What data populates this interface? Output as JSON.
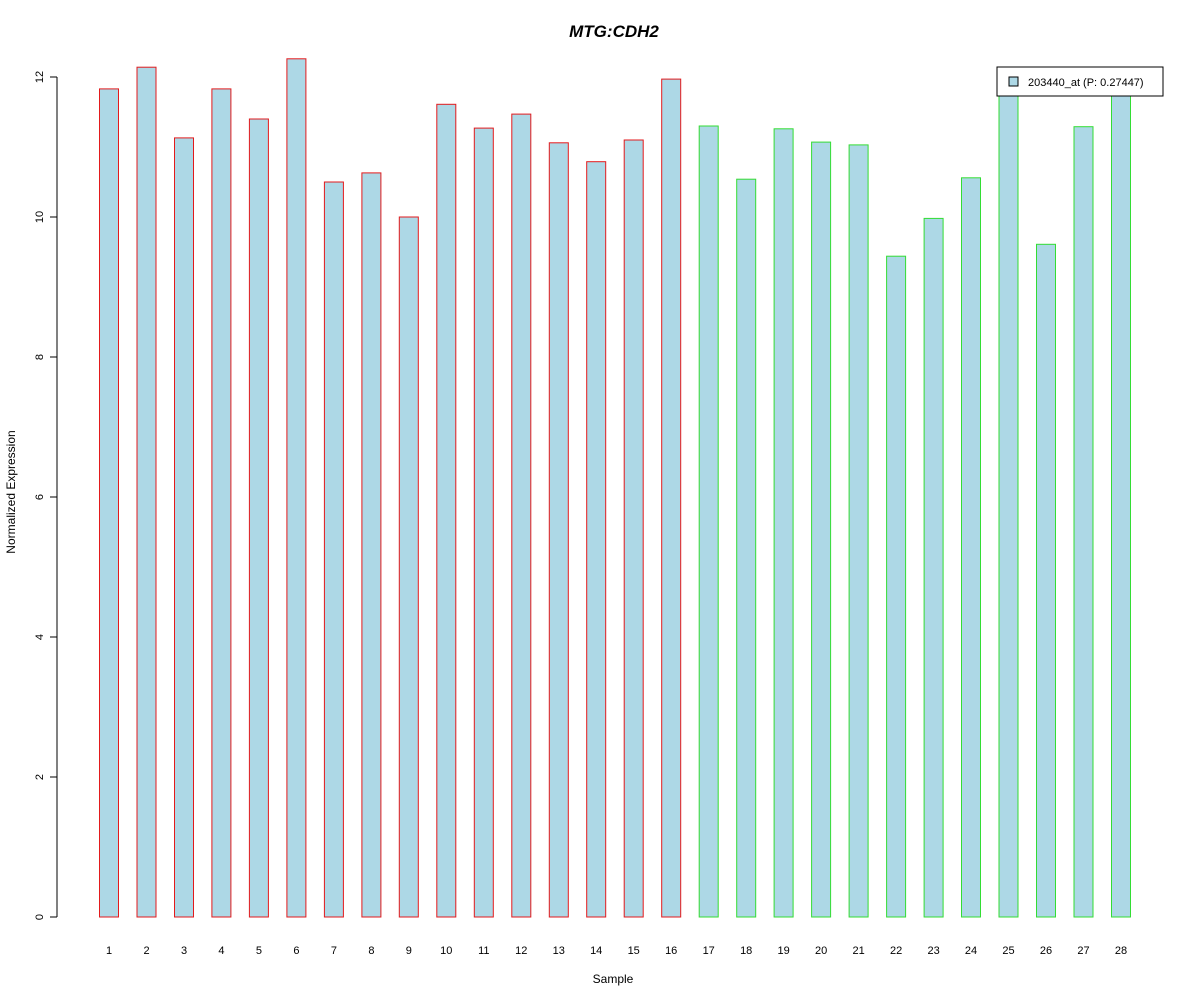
{
  "chart_data": {
    "type": "bar",
    "title": "MTG:CDH2",
    "xlabel": "Sample",
    "ylabel": "Normalized Expression",
    "categories": [
      "1",
      "2",
      "3",
      "4",
      "5",
      "6",
      "7",
      "8",
      "9",
      "10",
      "11",
      "12",
      "13",
      "14",
      "15",
      "16",
      "17",
      "18",
      "19",
      "20",
      "21",
      "22",
      "23",
      "24",
      "25",
      "26",
      "27",
      "28"
    ],
    "series": [
      {
        "name": "203440_at (P: 0.27447)",
        "values": [
          11.83,
          12.14,
          11.13,
          11.83,
          11.4,
          12.26,
          10.5,
          10.63,
          10.0,
          11.61,
          11.27,
          11.47,
          11.06,
          10.79,
          11.1,
          11.97,
          11.3,
          10.54,
          11.26,
          11.07,
          11.03,
          9.44,
          9.98,
          10.56,
          11.81,
          9.61,
          11.29,
          11.81
        ]
      }
    ],
    "group_colors": [
      "#e31a1c",
      "#e31a1c",
      "#e31a1c",
      "#e31a1c",
      "#e31a1c",
      "#e31a1c",
      "#e31a1c",
      "#e31a1c",
      "#e31a1c",
      "#e31a1c",
      "#e31a1c",
      "#e31a1c",
      "#e31a1c",
      "#e31a1c",
      "#e31a1c",
      "#e31a1c",
      "#33dd33",
      "#33dd33",
      "#33dd33",
      "#33dd33",
      "#33dd33",
      "#33dd33",
      "#33dd33",
      "#33dd33",
      "#33dd33",
      "#33dd33",
      "#33dd33",
      "#33dd33"
    ],
    "bar_fill": "#add8e6",
    "title_color": "#0000cc",
    "yticks": [
      0,
      2,
      4,
      6,
      8,
      10,
      12
    ],
    "ylim": [
      0,
      12.26
    ],
    "grid": false,
    "legend_position": "top-right"
  }
}
